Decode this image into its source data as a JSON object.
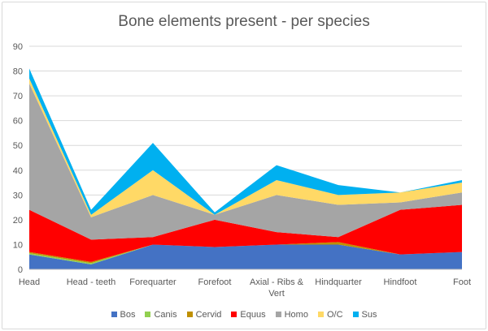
{
  "chart_data": {
    "type": "area",
    "stacked": true,
    "title": "Bone elements present - per species",
    "xlabel": "",
    "ylabel": "",
    "ylim": [
      0,
      90
    ],
    "yticks": [
      0,
      10,
      20,
      30,
      40,
      50,
      60,
      70,
      80,
      90
    ],
    "grid": true,
    "legend_position": "bottom",
    "categories": [
      "Head",
      "Head - teeth",
      "Forequarter",
      "Forefoot",
      "Axial - Ribs & Vert",
      "Hindquarter",
      "Hindfoot",
      "Foot"
    ],
    "category_lines": [
      [
        "Head"
      ],
      [
        "Head - teeth"
      ],
      [
        "Forequarter"
      ],
      [
        "Forefoot"
      ],
      [
        "Axial - Ribs &",
        "Vert"
      ],
      [
        "Hindquarter"
      ],
      [
        "Hindfoot"
      ],
      [
        "Foot"
      ]
    ],
    "series": [
      {
        "name": "Bos",
        "color": "#4472c4",
        "values": [
          6,
          2,
          10,
          9,
          10,
          10,
          6,
          7
        ]
      },
      {
        "name": "Canis",
        "color": "#92d050",
        "values": [
          0.5,
          0.5,
          0,
          0,
          0,
          0,
          0,
          0
        ]
      },
      {
        "name": "Cervid",
        "color": "#bf9000",
        "values": [
          0.5,
          0.5,
          0,
          0,
          0,
          1,
          0,
          0
        ]
      },
      {
        "name": "Equus",
        "color": "#ff0000",
        "values": [
          17,
          9,
          3,
          11,
          5,
          2,
          18,
          19
        ]
      },
      {
        "name": "Homo",
        "color": "#a5a5a5",
        "values": [
          51,
          9,
          17,
          2,
          15,
          13,
          3,
          5
        ]
      },
      {
        "name": "O/C",
        "color": "#ffd966",
        "values": [
          2,
          1,
          10,
          0,
          6,
          4,
          4,
          4
        ]
      },
      {
        "name": "Sus",
        "color": "#00b0f0",
        "values": [
          4,
          2,
          11,
          1,
          6,
          4,
          0,
          1
        ]
      }
    ]
  }
}
